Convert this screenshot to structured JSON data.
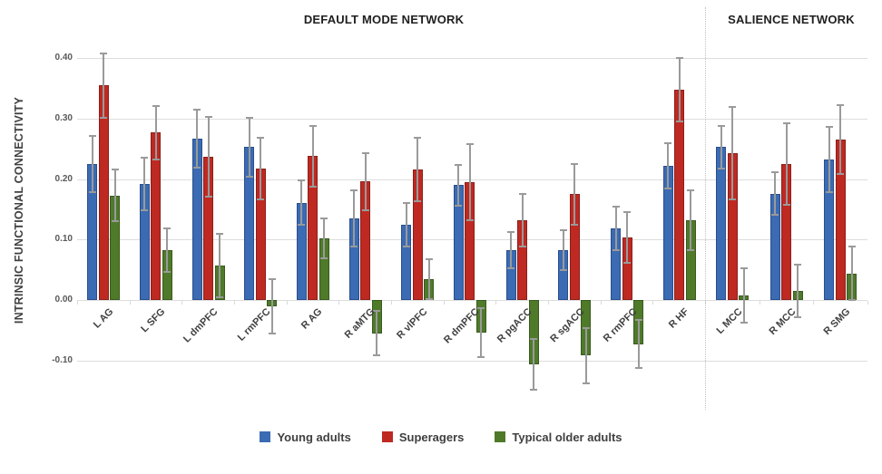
{
  "chart_data": {
    "type": "bar",
    "ylabel": "INTRINSIC FUNCTIONAL CONNECTIVITY",
    "grid": true,
    "legend_position": "bottom",
    "ylim": [
      -0.155,
      0.44
    ],
    "yticks": [
      {
        "label": "0.40",
        "value": 0.4
      },
      {
        "label": "0.30",
        "value": 0.3
      },
      {
        "label": "0.20",
        "value": 0.2
      },
      {
        "label": "0.10",
        "value": 0.1
      },
      {
        "label": "0.00",
        "value": 0.0
      },
      {
        "label": "-0.10",
        "value": -0.1
      }
    ],
    "sections": [
      {
        "title": "DEFAULT MODE NETWORK",
        "categories": [
          "L AG",
          "L SFG",
          "L dmPFC",
          "L rmPFC",
          "R AG",
          "R aMTG",
          "R vlPFC",
          "R dmPFC",
          "R pgACC",
          "R sgACC",
          "R rmPFC",
          "R HF"
        ]
      },
      {
        "title": "SALIENCE NETWORK",
        "categories": [
          "L MCC",
          "R MCC",
          "R SMG"
        ]
      }
    ],
    "series": [
      {
        "name": "Young adults",
        "color": "#3a6bb3",
        "border_color": "#2a4e8e",
        "values": [
          0.225,
          0.192,
          0.267,
          0.253,
          0.161,
          0.135,
          0.125,
          0.19,
          0.082,
          0.083,
          0.118,
          0.222,
          0.253,
          0.176,
          0.233
        ],
        "errors": [
          0.047,
          0.044,
          0.048,
          0.049,
          0.037,
          0.046,
          0.036,
          0.034,
          0.03,
          0.033,
          0.036,
          0.038,
          0.035,
          0.035,
          0.054
        ]
      },
      {
        "name": "Superagers",
        "color": "#be2922",
        "border_color": "#8c1f1a",
        "values": [
          0.355,
          0.277,
          0.237,
          0.217,
          0.238,
          0.196,
          0.216,
          0.195,
          0.132,
          0.175,
          0.104,
          0.348,
          0.243,
          0.225,
          0.266
        ],
        "errors": [
          0.053,
          0.044,
          0.066,
          0.051,
          0.05,
          0.047,
          0.053,
          0.063,
          0.044,
          0.05,
          0.042,
          0.053,
          0.077,
          0.068,
          0.057
        ]
      },
      {
        "name": "Typical older adults",
        "color": "#4e7a2a",
        "border_color": "#3a5b1e",
        "values": [
          0.173,
          0.083,
          0.057,
          -0.011,
          0.102,
          -0.055,
          0.035,
          -0.054,
          -0.107,
          -0.092,
          -0.073,
          0.132,
          0.007,
          0.015,
          0.044
        ],
        "errors": [
          0.043,
          0.036,
          0.053,
          0.045,
          0.033,
          0.037,
          0.033,
          0.04,
          0.042,
          0.046,
          0.04,
          0.05,
          0.045,
          0.043,
          0.044
        ]
      }
    ]
  }
}
